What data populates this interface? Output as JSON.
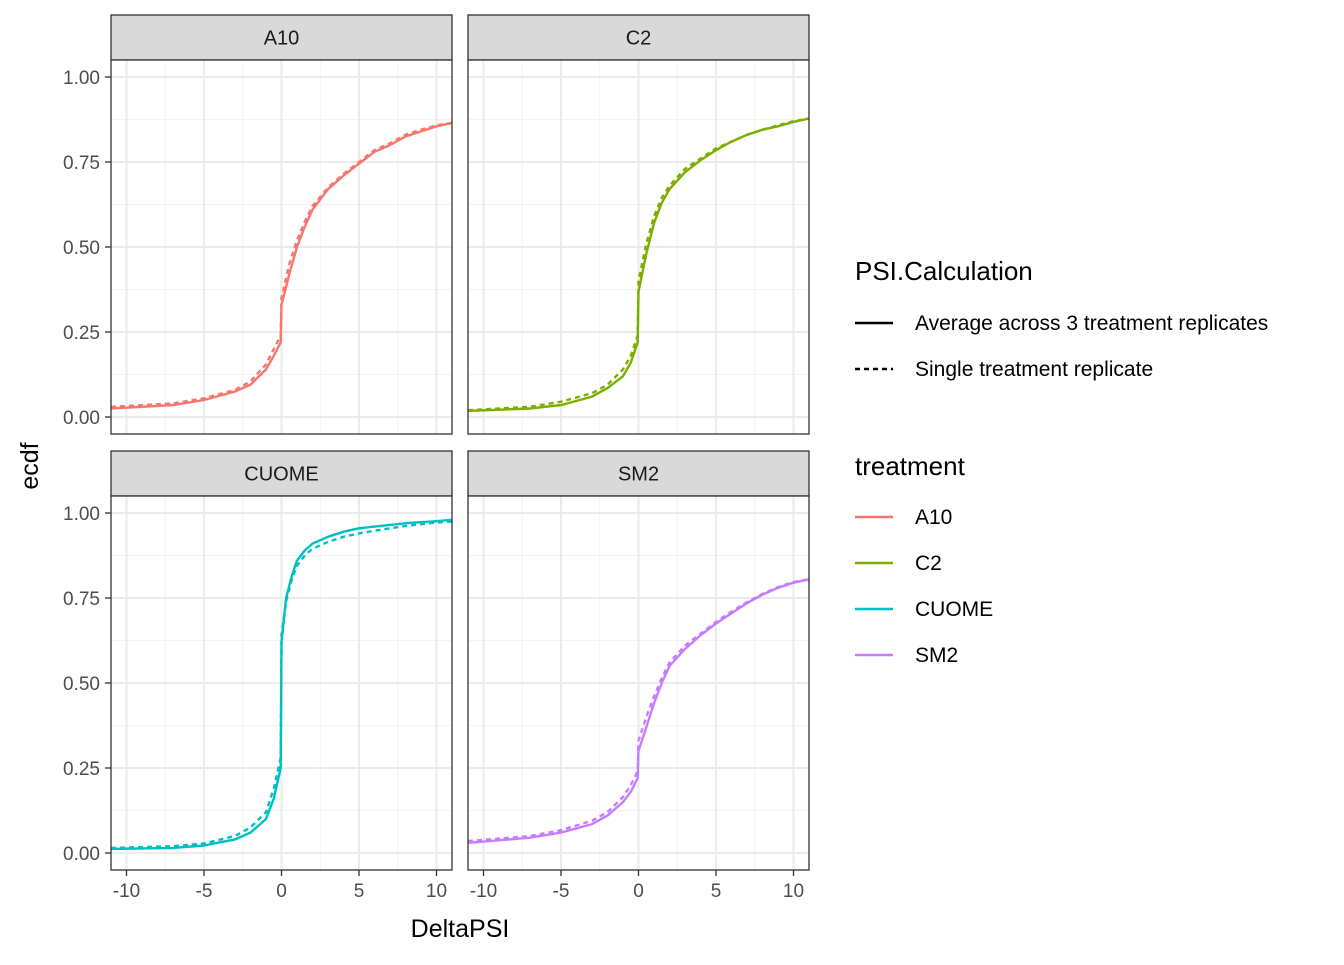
{
  "chart_data": {
    "type": "line",
    "subtype": "ecdf-faceted",
    "xlabel": "DeltaPSI",
    "ylabel": "ecdf",
    "xlim": [
      -11,
      11
    ],
    "ylim": [
      -0.05,
      1.05
    ],
    "x_ticks": [
      -10,
      -5,
      0,
      5,
      10
    ],
    "x_tick_labels": [
      "-10",
      "-5",
      "0",
      "5",
      "10"
    ],
    "y_ticks": [
      0,
      0.25,
      0.5,
      0.75,
      1.0
    ],
    "y_tick_labels": [
      "0.00",
      "0.25",
      "0.50",
      "0.75",
      "1.00"
    ],
    "grid": true,
    "legend_position": "right",
    "linetype_legend": {
      "title": "PSI.Calculation",
      "entries": [
        {
          "label": "Average across 3 treatment replicates",
          "dash": "solid"
        },
        {
          "label": "Single treatment replicate",
          "dash": "dashed"
        }
      ]
    },
    "color_legend": {
      "title": "treatment",
      "entries": [
        {
          "label": "A10",
          "color": "#F8766D"
        },
        {
          "label": "C2",
          "color": "#7CAE00"
        },
        {
          "label": "CUOME",
          "color": "#00BFC4"
        },
        {
          "label": "SM2",
          "color": "#C77CFF"
        }
      ]
    },
    "facets": [
      {
        "name": "A10",
        "color": "#F8766D",
        "series": [
          {
            "name": "Average across 3 treatment replicates",
            "dash": "solid",
            "points": [
              [
                -11,
                0.025
              ],
              [
                -7,
                0.035
              ],
              [
                -5,
                0.05
              ],
              [
                -3,
                0.075
              ],
              [
                -2,
                0.095
              ],
              [
                -1,
                0.14
              ],
              [
                -0.5,
                0.18
              ],
              [
                -0.05,
                0.22
              ],
              [
                0,
                0.33
              ],
              [
                0.5,
                0.42
              ],
              [
                1,
                0.5
              ],
              [
                1.5,
                0.56
              ],
              [
                2,
                0.61
              ],
              [
                3,
                0.67
              ],
              [
                4,
                0.71
              ],
              [
                5,
                0.745
              ],
              [
                6,
                0.78
              ],
              [
                7,
                0.8
              ],
              [
                8,
                0.825
              ],
              [
                9,
                0.84
              ],
              [
                10,
                0.855
              ],
              [
                11,
                0.865
              ]
            ]
          },
          {
            "name": "Single treatment replicate",
            "dash": "dashed",
            "points": [
              [
                -11,
                0.03
              ],
              [
                -7,
                0.04
              ],
              [
                -5,
                0.055
              ],
              [
                -3,
                0.08
              ],
              [
                -2,
                0.105
              ],
              [
                -1,
                0.155
              ],
              [
                -0.5,
                0.2
              ],
              [
                -0.05,
                0.24
              ],
              [
                0,
                0.35
              ],
              [
                0.5,
                0.45
              ],
              [
                1,
                0.52
              ],
              [
                1.5,
                0.575
              ],
              [
                2,
                0.62
              ],
              [
                3,
                0.675
              ],
              [
                4,
                0.715
              ],
              [
                5,
                0.75
              ],
              [
                6,
                0.785
              ],
              [
                7,
                0.805
              ],
              [
                8,
                0.83
              ],
              [
                9,
                0.845
              ],
              [
                10,
                0.858
              ],
              [
                11,
                0.865
              ]
            ]
          }
        ]
      },
      {
        "name": "C2",
        "color": "#7CAE00",
        "series": [
          {
            "name": "Average across 3 treatment replicates",
            "dash": "solid",
            "points": [
              [
                -11,
                0.018
              ],
              [
                -7,
                0.025
              ],
              [
                -5,
                0.035
              ],
              [
                -3,
                0.06
              ],
              [
                -2,
                0.085
              ],
              [
                -1,
                0.12
              ],
              [
                -0.5,
                0.16
              ],
              [
                -0.05,
                0.22
              ],
              [
                0,
                0.37
              ],
              [
                0.5,
                0.48
              ],
              [
                1,
                0.57
              ],
              [
                1.5,
                0.63
              ],
              [
                2,
                0.67
              ],
              [
                3,
                0.72
              ],
              [
                4,
                0.755
              ],
              [
                5,
                0.785
              ],
              [
                6,
                0.81
              ],
              [
                7,
                0.83
              ],
              [
                8,
                0.845
              ],
              [
                9,
                0.855
              ],
              [
                10,
                0.868
              ],
              [
                11,
                0.878
              ]
            ]
          },
          {
            "name": "Single treatment replicate",
            "dash": "dashed",
            "points": [
              [
                -11,
                0.02
              ],
              [
                -7,
                0.03
              ],
              [
                -5,
                0.045
              ],
              [
                -3,
                0.07
              ],
              [
                -2,
                0.095
              ],
              [
                -1,
                0.14
              ],
              [
                -0.5,
                0.18
              ],
              [
                -0.05,
                0.24
              ],
              [
                0,
                0.4
              ],
              [
                0.5,
                0.51
              ],
              [
                1,
                0.59
              ],
              [
                1.5,
                0.645
              ],
              [
                2,
                0.68
              ],
              [
                3,
                0.73
              ],
              [
                4,
                0.76
              ],
              [
                5,
                0.79
              ],
              [
                6,
                0.81
              ],
              [
                7,
                0.83
              ],
              [
                8,
                0.845
              ],
              [
                9,
                0.858
              ],
              [
                10,
                0.87
              ],
              [
                11,
                0.878
              ]
            ]
          }
        ]
      },
      {
        "name": "CUOME",
        "color": "#00BFC4",
        "series": [
          {
            "name": "Average across 3 treatment replicates",
            "dash": "solid",
            "points": [
              [
                -11,
                0.012
              ],
              [
                -7,
                0.015
              ],
              [
                -5,
                0.022
              ],
              [
                -3,
                0.04
              ],
              [
                -2,
                0.06
              ],
              [
                -1,
                0.1
              ],
              [
                -0.5,
                0.16
              ],
              [
                -0.05,
                0.25
              ],
              [
                0,
                0.62
              ],
              [
                0.3,
                0.75
              ],
              [
                0.7,
                0.82
              ],
              [
                1,
                0.86
              ],
              [
                1.5,
                0.89
              ],
              [
                2,
                0.91
              ],
              [
                3,
                0.93
              ],
              [
                4,
                0.945
              ],
              [
                5,
                0.955
              ],
              [
                6,
                0.96
              ],
              [
                7,
                0.965
              ],
              [
                8,
                0.97
              ],
              [
                9,
                0.973
              ],
              [
                10,
                0.976
              ],
              [
                11,
                0.98
              ]
            ]
          },
          {
            "name": "Single treatment replicate",
            "dash": "dashed",
            "points": [
              [
                -11,
                0.015
              ],
              [
                -7,
                0.02
              ],
              [
                -5,
                0.028
              ],
              [
                -3,
                0.05
              ],
              [
                -2,
                0.075
              ],
              [
                -1,
                0.12
              ],
              [
                -0.5,
                0.19
              ],
              [
                -0.05,
                0.28
              ],
              [
                0,
                0.64
              ],
              [
                0.3,
                0.74
              ],
              [
                0.7,
                0.81
              ],
              [
                1,
                0.845
              ],
              [
                1.5,
                0.875
              ],
              [
                2,
                0.895
              ],
              [
                3,
                0.915
              ],
              [
                4,
                0.93
              ],
              [
                5,
                0.94
              ],
              [
                6,
                0.948
              ],
              [
                7,
                0.955
              ],
              [
                8,
                0.962
              ],
              [
                9,
                0.967
              ],
              [
                10,
                0.972
              ],
              [
                11,
                0.975
              ]
            ]
          }
        ]
      },
      {
        "name": "SM2",
        "color": "#C77CFF",
        "series": [
          {
            "name": "Average across 3 treatment replicates",
            "dash": "solid",
            "points": [
              [
                -11,
                0.03
              ],
              [
                -7,
                0.045
              ],
              [
                -5,
                0.06
              ],
              [
                -3,
                0.085
              ],
              [
                -2,
                0.11
              ],
              [
                -1,
                0.15
              ],
              [
                -0.5,
                0.18
              ],
              [
                -0.05,
                0.22
              ],
              [
                0,
                0.3
              ],
              [
                0.5,
                0.37
              ],
              [
                1,
                0.44
              ],
              [
                1.5,
                0.5
              ],
              [
                2,
                0.55
              ],
              [
                3,
                0.6
              ],
              [
                4,
                0.64
              ],
              [
                5,
                0.675
              ],
              [
                6,
                0.705
              ],
              [
                7,
                0.735
              ],
              [
                8,
                0.76
              ],
              [
                9,
                0.78
              ],
              [
                10,
                0.795
              ],
              [
                11,
                0.805
              ]
            ]
          },
          {
            "name": "Single treatment replicate",
            "dash": "dashed",
            "points": [
              [
                -11,
                0.035
              ],
              [
                -7,
                0.05
              ],
              [
                -5,
                0.067
              ],
              [
                -3,
                0.095
              ],
              [
                -2,
                0.12
              ],
              [
                -1,
                0.165
              ],
              [
                -0.5,
                0.2
              ],
              [
                -0.05,
                0.24
              ],
              [
                0,
                0.33
              ],
              [
                0.5,
                0.4
              ],
              [
                1,
                0.46
              ],
              [
                1.5,
                0.515
              ],
              [
                2,
                0.56
              ],
              [
                3,
                0.61
              ],
              [
                4,
                0.645
              ],
              [
                5,
                0.68
              ],
              [
                6,
                0.71
              ],
              [
                7,
                0.738
              ],
              [
                8,
                0.762
              ],
              [
                9,
                0.782
              ],
              [
                10,
                0.797
              ],
              [
                11,
                0.805
              ]
            ]
          }
        ]
      }
    ]
  }
}
